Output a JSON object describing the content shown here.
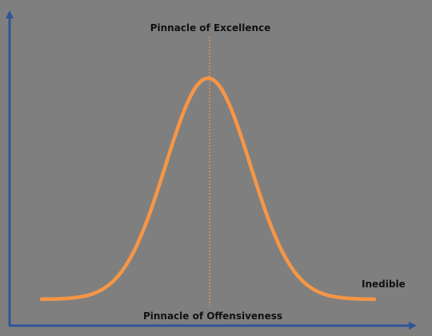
{
  "labels": {
    "top": "Pinnacle of Excellence",
    "bottom": "Pinnacle of Offensiveness",
    "right": "Inedible"
  },
  "colors": {
    "background": "#7f7f7f",
    "axes": "#2f5597",
    "curve": "#f79646",
    "guide": "#f79646",
    "text": "#111111"
  }
}
